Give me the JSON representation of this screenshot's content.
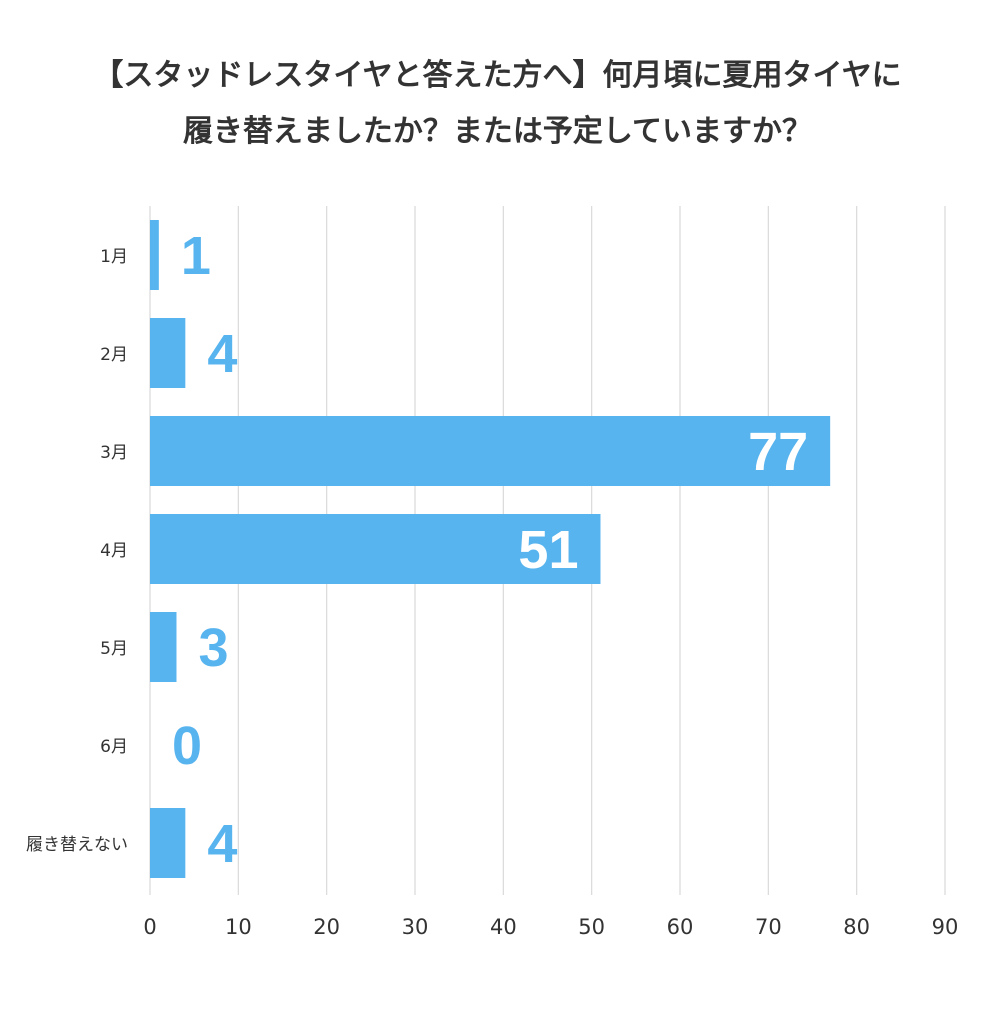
{
  "title": {
    "line1": "【スタッドレスタイヤと答えた方へ】何月頃に夏用タイヤに",
    "line2": "履き替えましたか？または予定していますか？"
  },
  "chart_data": {
    "type": "bar",
    "orientation": "horizontal",
    "title": "【スタッドレスタイヤと答えた方へ】何月頃に夏用タイヤに履き替えましたか？または予定していますか？",
    "categories": [
      "1月",
      "2月",
      "3月",
      "4月",
      "5月",
      "6月",
      "履き替えない"
    ],
    "values": [
      1,
      4,
      77,
      51,
      3,
      0,
      4
    ],
    "xlim": [
      0,
      90
    ],
    "xticks": [
      0,
      10,
      20,
      30,
      40,
      50,
      60,
      70,
      80,
      90
    ],
    "grid": "vertical",
    "bar_color": "#58b4ef",
    "label_color_outside": "#58b4ef",
    "label_color_inside": "#ffffff",
    "gridline_color": "#d9d9d9"
  }
}
